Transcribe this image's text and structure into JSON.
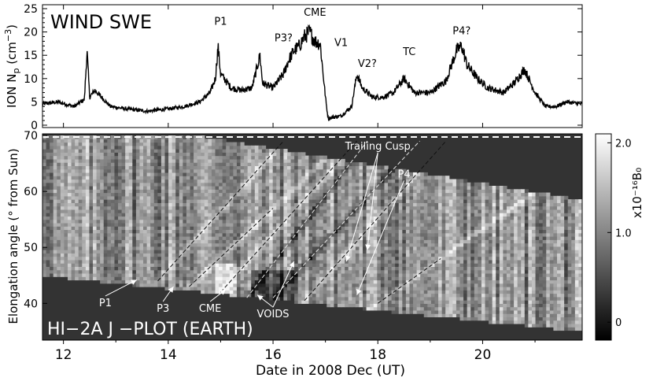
{
  "chart_data": [
    {
      "type": "line",
      "title": "WIND SWE",
      "ylabel": "ION N_p (cm^-3)",
      "xlim": [
        11.6,
        21.9
      ],
      "ylim": [
        0,
        25
      ],
      "yticks": [
        0,
        5,
        10,
        15,
        20,
        25
      ],
      "annotations": [
        {
          "text": "P1",
          "x": 15.0,
          "y": 21.5
        },
        {
          "text": "P3?",
          "x": 16.2,
          "y": 18.0
        },
        {
          "text": "CME",
          "x": 16.8,
          "y": 23.5
        },
        {
          "text": "V1",
          "x": 17.3,
          "y": 17.0
        },
        {
          "text": "V2?",
          "x": 17.8,
          "y": 12.5
        },
        {
          "text": "TC",
          "x": 18.6,
          "y": 15.0
        },
        {
          "text": "P4?",
          "x": 19.6,
          "y": 19.5
        }
      ],
      "series": [
        {
          "name": "",
          "color": "#000000",
          "x": [
            11.6,
            11.9,
            12.2,
            12.4,
            12.45,
            12.5,
            12.6,
            12.9,
            13.2,
            13.6,
            14.0,
            14.3,
            14.6,
            14.8,
            14.9,
            14.95,
            15.0,
            15.2,
            15.4,
            15.6,
            15.75,
            15.8,
            16.0,
            16.2,
            16.3,
            16.4,
            16.5,
            16.6,
            16.7,
            16.8,
            16.9,
            17.0,
            17.05,
            17.3,
            17.5,
            17.6,
            17.7,
            17.9,
            18.1,
            18.3,
            18.5,
            18.7,
            19.0,
            19.3,
            19.5,
            19.6,
            19.7,
            19.9,
            20.1,
            20.4,
            20.6,
            20.8,
            21.0,
            21.2,
            21.4,
            21.6,
            21.9
          ],
          "y": [
            4.5,
            5.0,
            4.0,
            5.5,
            16.0,
            6.0,
            7.5,
            4.0,
            3.5,
            3.0,
            3.5,
            4.0,
            5.0,
            7.0,
            10.0,
            17.0,
            11.0,
            8.0,
            7.5,
            8.0,
            15.0,
            9.0,
            8.0,
            11.0,
            14.0,
            16.0,
            17.0,
            19.0,
            20.0,
            18.0,
            17.5,
            6.0,
            1.5,
            2.0,
            4.0,
            11.0,
            8.0,
            6.0,
            6.0,
            7.0,
            10.0,
            7.0,
            7.0,
            9.5,
            16.0,
            17.0,
            13.0,
            10.0,
            8.0,
            7.0,
            9.0,
            12.0,
            7.0,
            4.0,
            4.0,
            5.0,
            4.5
          ]
        }
      ]
    },
    {
      "type": "heatmap",
      "title": "HI−2A J −PLOT (EARTH)",
      "xlabel": "Date in 2008 Dec (UT)",
      "ylabel": "Elongation angle (° from Sun)",
      "xlim": [
        11.6,
        21.9
      ],
      "ylim": [
        34,
        70
      ],
      "xticks": [
        12,
        14,
        16,
        18,
        20
      ],
      "yticks": [
        40,
        50,
        60,
        70
      ],
      "colorbar": {
        "label": "x10⁻¹⁶B₀",
        "range": [
          -0.2,
          2.1
        ],
        "ticks": [
          0,
          1.0,
          2.0
        ],
        "tick_labels": [
          "0",
          "1.0",
          "2.0"
        ]
      },
      "annotations": [
        {
          "text": "Trailing Cusp",
          "x": 18.0,
          "y": 67.5
        },
        {
          "text": "P4",
          "x": 18.5,
          "y": 62.5
        },
        {
          "text": "P1",
          "x": 12.8,
          "y": 39.5
        },
        {
          "text": "P3",
          "x": 13.9,
          "y": 38.5
        },
        {
          "text": "CME",
          "x": 14.8,
          "y": 38.5
        },
        {
          "text": "VOIDS",
          "x": 16.0,
          "y": 37.5
        }
      ],
      "tracks": [
        {
          "name": "P1",
          "style": "dark",
          "x0": 13.8,
          "y0": 44,
          "x1": 16.2,
          "y1": 69
        },
        {
          "name": "P3",
          "style": "dark",
          "x0": 14.4,
          "y0": 43,
          "x1": 16.0,
          "y1": 57
        },
        {
          "name": "CME",
          "style": "dark",
          "x0": 15.0,
          "y0": 42,
          "x1": 17.6,
          "y1": 69
        },
        {
          "name": "VOIDS-1",
          "style": "light",
          "x0": 15.5,
          "y0": 41,
          "x1": 17.8,
          "y1": 69
        },
        {
          "name": "VOIDS-2",
          "style": "light",
          "x0": 16.0,
          "y0": 41,
          "x1": 18.8,
          "y1": 69
        },
        {
          "name": "Trailing Cusp",
          "style": "dark",
          "x0": 16.6,
          "y0": 40.5,
          "x1": 19.3,
          "y1": 69
        },
        {
          "name": "P4",
          "style": "dark",
          "x0": 18.0,
          "y0": 40,
          "x1": 19.2,
          "y1": 48
        }
      ]
    }
  ]
}
